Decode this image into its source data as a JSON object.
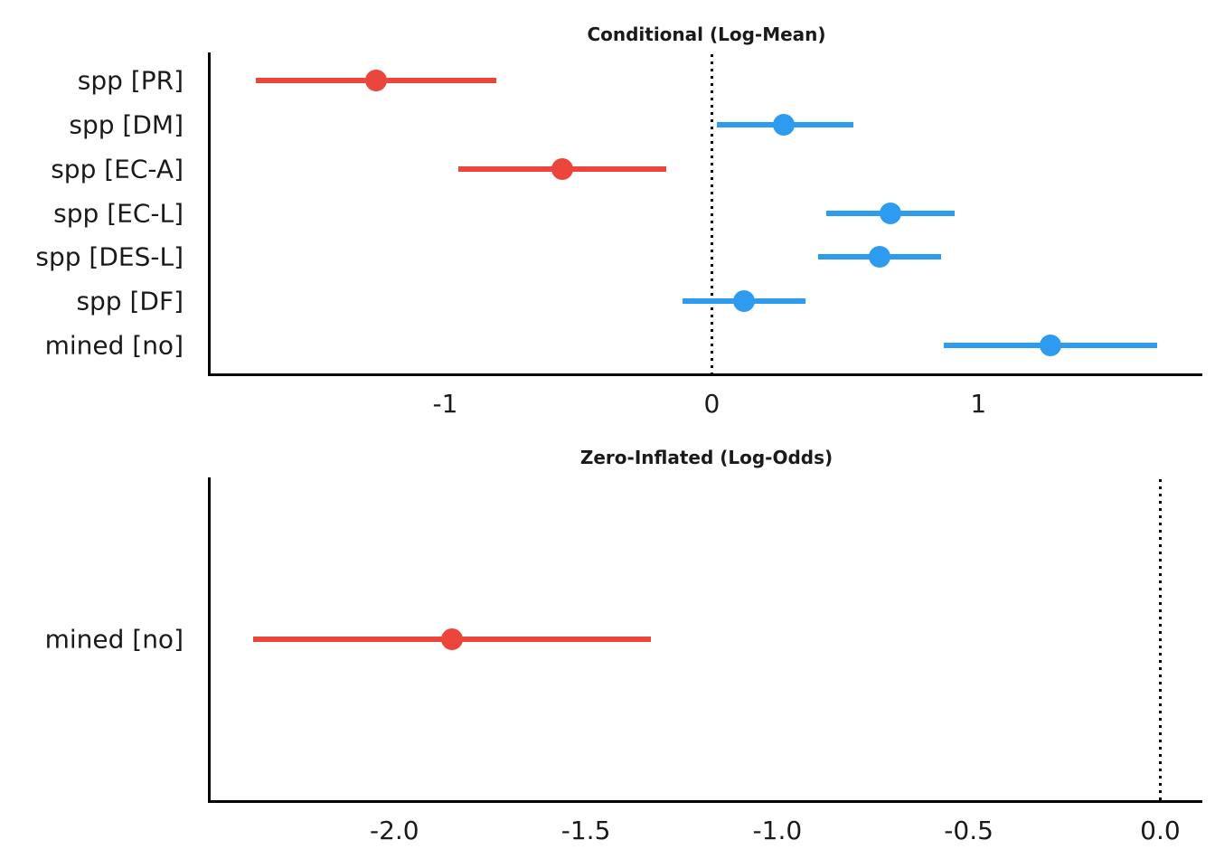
{
  "figure": {
    "background": "#ffffff",
    "style": {
      "positive_color": "#2d9bf0",
      "negative_color": "#eb453c",
      "axis_color": "#000000",
      "text_color": "#1a1a1a"
    }
  },
  "chart_data": [
    {
      "type": "scatter",
      "subtype": "forest-plot",
      "title": "Conditional (Log-Mean)",
      "categories": [
        "spp [PR]",
        "spp [DM]",
        "spp [EC-A]",
        "spp [EC-L]",
        "spp [DES-L]",
        "spp [DF]",
        "mined [no]"
      ],
      "estimates": [
        -1.26,
        0.27,
        -0.56,
        0.67,
        0.63,
        0.12,
        1.27
      ],
      "ci_low": [
        -1.71,
        0.02,
        -0.95,
        0.43,
        0.4,
        -0.11,
        0.87
      ],
      "ci_high": [
        -0.81,
        0.53,
        -0.17,
        0.91,
        0.86,
        0.35,
        1.67
      ],
      "point_color_key": [
        "negative",
        "positive",
        "negative",
        "positive",
        "positive",
        "positive",
        "positive"
      ],
      "xlim": [
        -1.88,
        1.84
      ],
      "x_ticks": [
        -1,
        0,
        1
      ],
      "x_tick_labels": [
        "-1",
        "0",
        "1"
      ],
      "zero_line": 0,
      "xlabel": "",
      "ylabel": "",
      "grid": false,
      "legend": false
    },
    {
      "type": "scatter",
      "subtype": "forest-plot",
      "title": "Zero-Inflated (Log-Odds)",
      "categories": [
        "mined [no]"
      ],
      "estimates": [
        -1.85
      ],
      "ci_low": [
        -2.37
      ],
      "ci_high": [
        -1.33
      ],
      "point_color_key": [
        "negative"
      ],
      "xlim": [
        -2.48,
        0.11
      ],
      "x_ticks": [
        -2.0,
        -1.5,
        -1.0,
        -0.5,
        0.0
      ],
      "x_tick_labels": [
        "-2.0",
        "-1.5",
        "-1.0",
        "-0.5",
        "0.0"
      ],
      "zero_line": 0,
      "xlabel": "",
      "ylabel": "",
      "grid": false,
      "legend": false
    }
  ]
}
